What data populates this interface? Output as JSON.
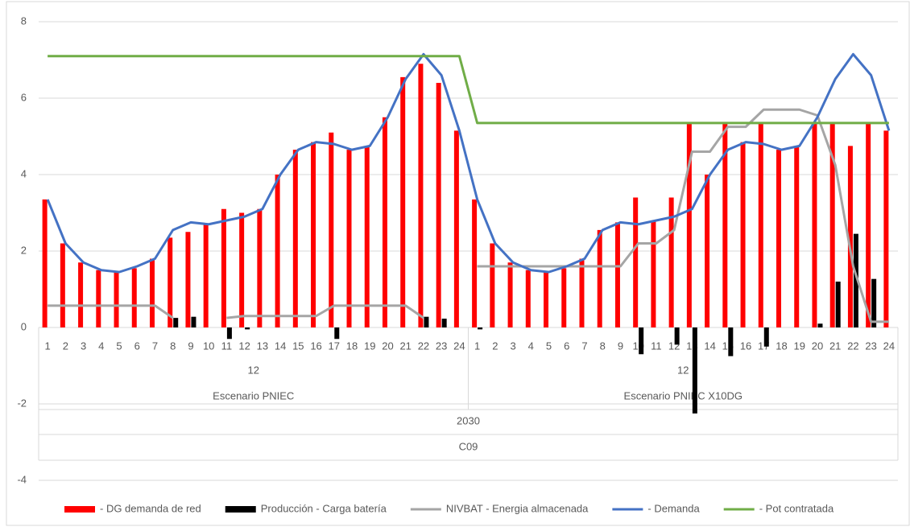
{
  "chart_data": {
    "type": "combo",
    "categories": [
      "1",
      "2",
      "3",
      "4",
      "5",
      "6",
      "7",
      "8",
      "9",
      "10",
      "11",
      "12",
      "13",
      "14",
      "15",
      "16",
      "17",
      "18",
      "19",
      "20",
      "21",
      "22",
      "23",
      "24",
      "1",
      "2",
      "3",
      "4",
      "5",
      "6",
      "7",
      "8",
      "9",
      "10",
      "11",
      "12",
      "13",
      "14",
      "15",
      "16",
      "17",
      "18",
      "19",
      "20",
      "21",
      "22",
      "23",
      "24"
    ],
    "subgroups": [
      "12",
      "12"
    ],
    "groups": [
      "Escenario PNIEC",
      "Escenario PNIEC X10DG"
    ],
    "supergroups": [
      "2030"
    ],
    "topgroups": [
      "C09"
    ],
    "ylim": [
      -4,
      8
    ],
    "yticks": [
      8,
      6,
      4,
      2,
      0,
      -2,
      -4
    ],
    "grid": true,
    "series": [
      {
        "name": "- DG demanda de red",
        "type": "bar",
        "color": "#ff0000",
        "values": [
          3.35,
          2.2,
          1.7,
          1.5,
          1.45,
          1.55,
          1.8,
          2.35,
          2.5,
          2.7,
          3.1,
          3.0,
          3.1,
          4.0,
          4.65,
          4.85,
          5.1,
          4.65,
          4.75,
          5.5,
          6.55,
          6.9,
          6.4,
          5.15,
          3.35,
          2.2,
          1.7,
          1.5,
          1.45,
          1.55,
          1.8,
          2.55,
          2.75,
          3.4,
          2.8,
          3.4,
          5.35,
          4.0,
          5.35,
          4.85,
          5.35,
          4.65,
          4.75,
          5.35,
          5.35,
          4.75,
          5.35,
          5.15
        ]
      },
      {
        "name": "Producción - Carga batería",
        "type": "bar",
        "color": "#000000",
        "values": [
          0,
          0,
          0,
          0,
          0,
          0,
          0,
          0.25,
          0.28,
          0,
          -0.3,
          -0.05,
          0,
          0,
          0,
          0,
          -0.3,
          0,
          0,
          0,
          0,
          0.28,
          0.23,
          0,
          -0.05,
          0,
          0,
          0,
          0,
          0,
          0,
          0,
          0,
          -0.7,
          0,
          -0.45,
          -2.25,
          0,
          -0.75,
          0,
          -0.5,
          0,
          0,
          0.1,
          1.2,
          2.45,
          1.27,
          0
        ]
      },
      {
        "name": "NIVBAT - Energia almacenada",
        "type": "line",
        "color": "#a5a5a5",
        "values": [
          0.57,
          0.57,
          0.57,
          0.57,
          0.57,
          0.57,
          0.57,
          0.25,
          null,
          null,
          0.25,
          0.3,
          0.3,
          0.3,
          0.3,
          0.3,
          0.57,
          0.57,
          0.57,
          0.57,
          0.57,
          0.25,
          null,
          null,
          1.6,
          1.6,
          1.6,
          1.6,
          1.6,
          1.6,
          1.6,
          1.6,
          1.6,
          2.2,
          2.2,
          2.55,
          4.6,
          4.6,
          5.25,
          5.25,
          5.7,
          5.7,
          5.7,
          5.55,
          4.25,
          1.6,
          0.15,
          0.15
        ]
      },
      {
        "name": "- Demanda",
        "type": "line",
        "color": "#4472c4",
        "values": [
          3.35,
          2.2,
          1.7,
          1.5,
          1.45,
          1.6,
          1.8,
          2.55,
          2.75,
          2.7,
          2.8,
          2.9,
          3.1,
          4.0,
          4.65,
          4.85,
          4.8,
          4.65,
          4.75,
          5.5,
          6.5,
          7.15,
          6.6,
          5.15,
          3.35,
          2.2,
          1.7,
          1.5,
          1.45,
          1.6,
          1.8,
          2.55,
          2.75,
          2.7,
          2.8,
          2.9,
          3.1,
          4.0,
          4.65,
          4.85,
          4.8,
          4.65,
          4.75,
          5.5,
          6.5,
          7.15,
          6.6,
          5.15
        ]
      },
      {
        "name": "- Pot contratada",
        "type": "line",
        "color": "#70ad47",
        "values": [
          7.1,
          7.1,
          7.1,
          7.1,
          7.1,
          7.1,
          7.1,
          7.1,
          7.1,
          7.1,
          7.1,
          7.1,
          7.1,
          7.1,
          7.1,
          7.1,
          7.1,
          7.1,
          7.1,
          7.1,
          7.1,
          7.1,
          7.1,
          7.1,
          5.35,
          5.35,
          5.35,
          5.35,
          5.35,
          5.35,
          5.35,
          5.35,
          5.35,
          5.35,
          5.35,
          5.35,
          5.35,
          5.35,
          5.35,
          5.35,
          5.35,
          5.35,
          5.35,
          5.35,
          5.35,
          5.35,
          5.35,
          5.35
        ]
      }
    ]
  }
}
